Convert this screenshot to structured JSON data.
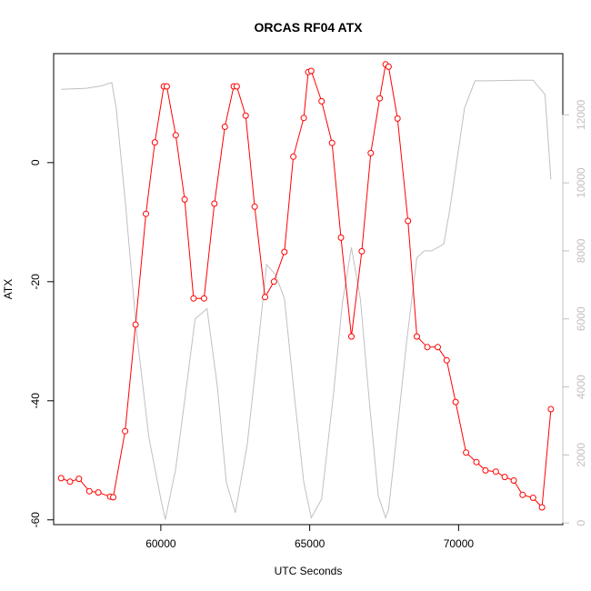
{
  "chart_data": {
    "type": "line",
    "title": "ORCAS RF04 ATX",
    "xlabel": "UTC Seconds",
    "ylabel": "ATX",
    "xlim": [
      56400,
      73500
    ],
    "ylim": [
      -60.8,
      18.3
    ],
    "y2lim": [
      -50,
      13800
    ],
    "x_ticks": [
      60000,
      65000,
      70000
    ],
    "x_tick_labels": [
      "60000",
      "65000",
      "70000"
    ],
    "y_ticks": [
      -60,
      -40,
      -20,
      0
    ],
    "y_tick_labels": [
      "-60",
      "-40",
      "-20",
      "0"
    ],
    "y2_ticks": [
      0,
      2000,
      4000,
      6000,
      8000,
      10000,
      12000
    ],
    "y2_tick_labels": [
      "0",
      "2000",
      "4000",
      "6000",
      "8000",
      "10000",
      "12000"
    ],
    "grid": false,
    "series": [
      {
        "axis": "left",
        "style": "line+points",
        "color": "#ff0000",
        "x": [
          56650,
          56950,
          57250,
          57600,
          57900,
          58300,
          58400,
          58800,
          59150,
          59500,
          59800,
          60100,
          60200,
          60500,
          60800,
          61100,
          61450,
          61800,
          62150,
          62450,
          62550,
          62850,
          63150,
          63500,
          63800,
          64150,
          64450,
          64800,
          64950,
          65050,
          65400,
          65750,
          66050,
          66400,
          66750,
          67050,
          67350,
          67550,
          67650,
          67950,
          68300,
          68600,
          68950,
          69300,
          69600,
          69900,
          70250,
          70600,
          70900,
          71250,
          71550,
          71850,
          72150,
          72500,
          72800,
          73100
        ],
        "y": [
          -53,
          -53.6,
          -53.1,
          -55.2,
          -55.4,
          -56.1,
          -56.2,
          -45.1,
          -27.2,
          -8.6,
          3.4,
          12.8,
          12.8,
          4.6,
          -6.2,
          -22.8,
          -22.8,
          -6.9,
          6.0,
          12.8,
          12.8,
          7.9,
          -7.4,
          -22.6,
          -20.0,
          -15.0,
          1.0,
          7.5,
          15.2,
          15.4,
          10.3,
          3.3,
          -12.6,
          -29.2,
          -14.9,
          1.6,
          10.8,
          16.5,
          16.1,
          7.4,
          -9.8,
          -29.2,
          -31.0,
          -31.0,
          -33.2,
          -40.2,
          -48.7,
          -50.3,
          -51.7,
          -51.9,
          -52.8,
          -53.4,
          -55.8,
          -56.3,
          -57.9,
          -41.4
        ]
      },
      {
        "axis": "right",
        "style": "line",
        "color": "#c0c0c0",
        "x": [
          56650,
          57500,
          58000,
          58350,
          58500,
          58800,
          59200,
          59600,
          60000,
          60150,
          60500,
          60800,
          61150,
          61550,
          61900,
          62200,
          62500,
          62900,
          63300,
          63550,
          63850,
          64150,
          64500,
          64800,
          65050,
          65400,
          65800,
          66100,
          66400,
          66700,
          67000,
          67300,
          67550,
          67650,
          67950,
          68250,
          68600,
          68850,
          69100,
          69500,
          69700,
          70200,
          70550,
          71000,
          72000,
          72500,
          72900,
          73100
        ],
        "y": [
          12750,
          12780,
          12850,
          12950,
          12200,
          9500,
          5500,
          2500,
          700,
          100,
          1600,
          3600,
          6000,
          6300,
          4000,
          1200,
          300,
          2300,
          5500,
          7600,
          7300,
          6600,
          3600,
          1200,
          150,
          700,
          3800,
          6500,
          8100,
          6600,
          3600,
          800,
          150,
          400,
          2800,
          5300,
          7800,
          8000,
          8000,
          8200,
          9200,
          12200,
          13000,
          13000,
          13020,
          13020,
          12600,
          10100
        ]
      }
    ]
  }
}
